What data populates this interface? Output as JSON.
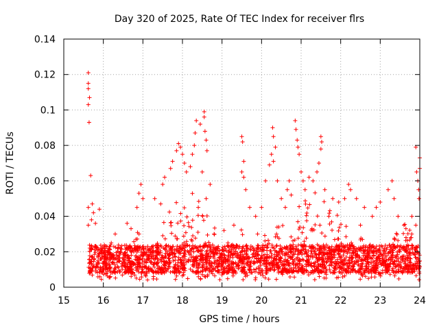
{
  "chart_data": {
    "type": "scatter",
    "title": "Day 320 of 2025, Rate Of TEC Index for receiver flrs",
    "xlabel": "GPS time / hours",
    "ylabel": "ROTI / TECUs",
    "xlim": [
      15,
      24
    ],
    "ylim": [
      0,
      0.14
    ],
    "x_ticks": [
      15,
      16,
      17,
      18,
      19,
      20,
      21,
      22,
      23,
      24
    ],
    "x_tick_labels": [
      "15",
      "16",
      "17",
      "18",
      "19",
      "20",
      "21",
      "22",
      "23",
      "24"
    ],
    "y_ticks": [
      0,
      0.02,
      0.04,
      0.06,
      0.08,
      0.1,
      0.12,
      0.14
    ],
    "y_tick_labels": [
      "0",
      "0.02",
      "0.04",
      "0.06",
      "0.08",
      "0.1",
      "0.12",
      "0.14"
    ],
    "grid": true,
    "marker": "plus",
    "series": [
      {
        "name": "ROTI",
        "color": "#ff0000",
        "points": [
          [
            15.62,
            0.121
          ],
          [
            15.62,
            0.115
          ],
          [
            15.62,
            0.112
          ],
          [
            15.65,
            0.107
          ],
          [
            15.62,
            0.103
          ],
          [
            15.64,
            0.093
          ],
          [
            15.68,
            0.063
          ],
          [
            15.62,
            0.045
          ],
          [
            15.72,
            0.047
          ],
          [
            15.75,
            0.042
          ],
          [
            15.62,
            0.035
          ],
          [
            15.7,
            0.038
          ],
          [
            15.8,
            0.036
          ],
          [
            15.9,
            0.044
          ],
          [
            16.3,
            0.03
          ],
          [
            16.6,
            0.036
          ],
          [
            16.7,
            0.033
          ],
          [
            16.9,
            0.053
          ],
          [
            16.95,
            0.058
          ],
          [
            16.85,
            0.045
          ],
          [
            17.0,
            0.05
          ],
          [
            17.3,
            0.05
          ],
          [
            17.45,
            0.047
          ],
          [
            17.5,
            0.058
          ],
          [
            17.55,
            0.062
          ],
          [
            17.7,
            0.067
          ],
          [
            17.75,
            0.071
          ],
          [
            17.85,
            0.077
          ],
          [
            17.9,
            0.081
          ],
          [
            17.95,
            0.079
          ],
          [
            18.0,
            0.075
          ],
          [
            18.05,
            0.07
          ],
          [
            18.1,
            0.065
          ],
          [
            18.2,
            0.068
          ],
          [
            18.25,
            0.075
          ],
          [
            18.3,
            0.08
          ],
          [
            18.32,
            0.087
          ],
          [
            18.35,
            0.094
          ],
          [
            18.45,
            0.092
          ],
          [
            18.55,
            0.099
          ],
          [
            18.55,
            0.096
          ],
          [
            18.57,
            0.088
          ],
          [
            18.6,
            0.083
          ],
          [
            18.62,
            0.077
          ],
          [
            18.5,
            0.065
          ],
          [
            18.7,
            0.058
          ],
          [
            18.6,
            0.05
          ],
          [
            18.4,
            0.045
          ],
          [
            18.8,
            0.03
          ],
          [
            19.05,
            0.032
          ],
          [
            19.3,
            0.035
          ],
          [
            19.5,
            0.085
          ],
          [
            19.52,
            0.082
          ],
          [
            19.55,
            0.071
          ],
          [
            19.5,
            0.065
          ],
          [
            19.55,
            0.062
          ],
          [
            19.6,
            0.055
          ],
          [
            19.7,
            0.045
          ],
          [
            19.85,
            0.04
          ],
          [
            20.0,
            0.045
          ],
          [
            20.1,
            0.06
          ],
          [
            20.2,
            0.069
          ],
          [
            20.25,
            0.075
          ],
          [
            20.28,
            0.09
          ],
          [
            20.3,
            0.085
          ],
          [
            20.35,
            0.079
          ],
          [
            20.3,
            0.071
          ],
          [
            20.4,
            0.06
          ],
          [
            20.5,
            0.05
          ],
          [
            20.6,
            0.045
          ],
          [
            20.65,
            0.055
          ],
          [
            20.7,
            0.06
          ],
          [
            20.75,
            0.052
          ],
          [
            20.85,
            0.094
          ],
          [
            20.87,
            0.089
          ],
          [
            20.9,
            0.083
          ],
          [
            20.92,
            0.079
          ],
          [
            20.95,
            0.075
          ],
          [
            21.0,
            0.065
          ],
          [
            21.05,
            0.06
          ],
          [
            21.1,
            0.055
          ],
          [
            21.2,
            0.062
          ],
          [
            21.3,
            0.06
          ],
          [
            21.4,
            0.065
          ],
          [
            21.45,
            0.07
          ],
          [
            21.5,
            0.085
          ],
          [
            21.52,
            0.082
          ],
          [
            21.5,
            0.078
          ],
          [
            21.6,
            0.055
          ],
          [
            21.8,
            0.05
          ],
          [
            21.95,
            0.048
          ],
          [
            22.1,
            0.05
          ],
          [
            22.2,
            0.058
          ],
          [
            22.25,
            0.055
          ],
          [
            22.4,
            0.05
          ],
          [
            22.6,
            0.045
          ],
          [
            22.8,
            0.04
          ],
          [
            22.9,
            0.045
          ],
          [
            23.0,
            0.048
          ],
          [
            23.2,
            0.055
          ],
          [
            23.3,
            0.06
          ],
          [
            23.35,
            0.05
          ],
          [
            23.45,
            0.04
          ],
          [
            23.6,
            0.035
          ],
          [
            23.65,
            0.033
          ],
          [
            23.8,
            0.04
          ],
          [
            23.9,
            0.079
          ],
          [
            23.92,
            0.065
          ],
          [
            23.95,
            0.06
          ],
          [
            23.97,
            0.055
          ],
          [
            23.98,
            0.05
          ],
          [
            24.0,
            0.073
          ],
          [
            24.0,
            0.067
          ],
          [
            23.9,
            0.035
          ],
          [
            22.5,
            0.035
          ],
          [
            21.7,
            0.04
          ],
          [
            19.9,
            0.03
          ],
          [
            19.15,
            0.025
          ],
          [
            16.2,
            0.025
          ]
        ],
        "band": {
          "x_range": [
            15.62,
            24.0
          ],
          "baseline_range": [
            0.008,
            0.024
          ],
          "floor": 0.004,
          "active_spans": [
            {
              "from": 17.3,
              "to": 19.0,
              "up_to": 0.06
            },
            {
              "from": 20.0,
              "to": 22.6,
              "up_to": 0.055
            },
            {
              "from": 19.4,
              "to": 19.7,
              "up_to": 0.045
            },
            {
              "from": 23.2,
              "to": 24.0,
              "up_to": 0.04
            },
            {
              "from": 16.5,
              "to": 17.2,
              "up_to": 0.035
            }
          ]
        }
      }
    ]
  }
}
